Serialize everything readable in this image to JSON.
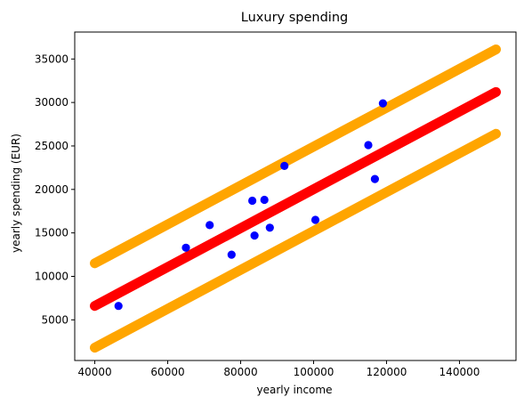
{
  "chart_data": {
    "type": "scatter",
    "title": "Luxury spending",
    "xlabel": "yearly income",
    "ylabel": "yearly spending (EUR)",
    "xlim": [
      34500,
      155500
    ],
    "ylim": [
      325,
      38100
    ],
    "xticks": [
      40000,
      60000,
      80000,
      100000,
      120000,
      140000
    ],
    "yticks": [
      5000,
      10000,
      15000,
      20000,
      25000,
      30000,
      35000
    ],
    "grid": false,
    "legend": "none",
    "points": {
      "color": "#0000ff",
      "x": [
        46500,
        65000,
        71500,
        77500,
        83200,
        83800,
        86500,
        88000,
        92000,
        100500,
        115000,
        116800,
        119000
      ],
      "y": [
        6600,
        13300,
        15900,
        12500,
        18700,
        14700,
        18800,
        15600,
        22700,
        16500,
        25100,
        21200,
        29900
      ]
    },
    "lines": [
      {
        "role": "fit",
        "color": "#ff0000",
        "x": [
          40000,
          150000
        ],
        "y": [
          6600,
          31200
        ]
      },
      {
        "role": "upper-band",
        "color": "#ffa500",
        "x": [
          40000,
          150000
        ],
        "y": [
          11500,
          36100
        ]
      },
      {
        "role": "lower-band",
        "color": "#ffa500",
        "x": [
          40000,
          150000
        ],
        "y": [
          1800,
          26400
        ]
      }
    ]
  }
}
